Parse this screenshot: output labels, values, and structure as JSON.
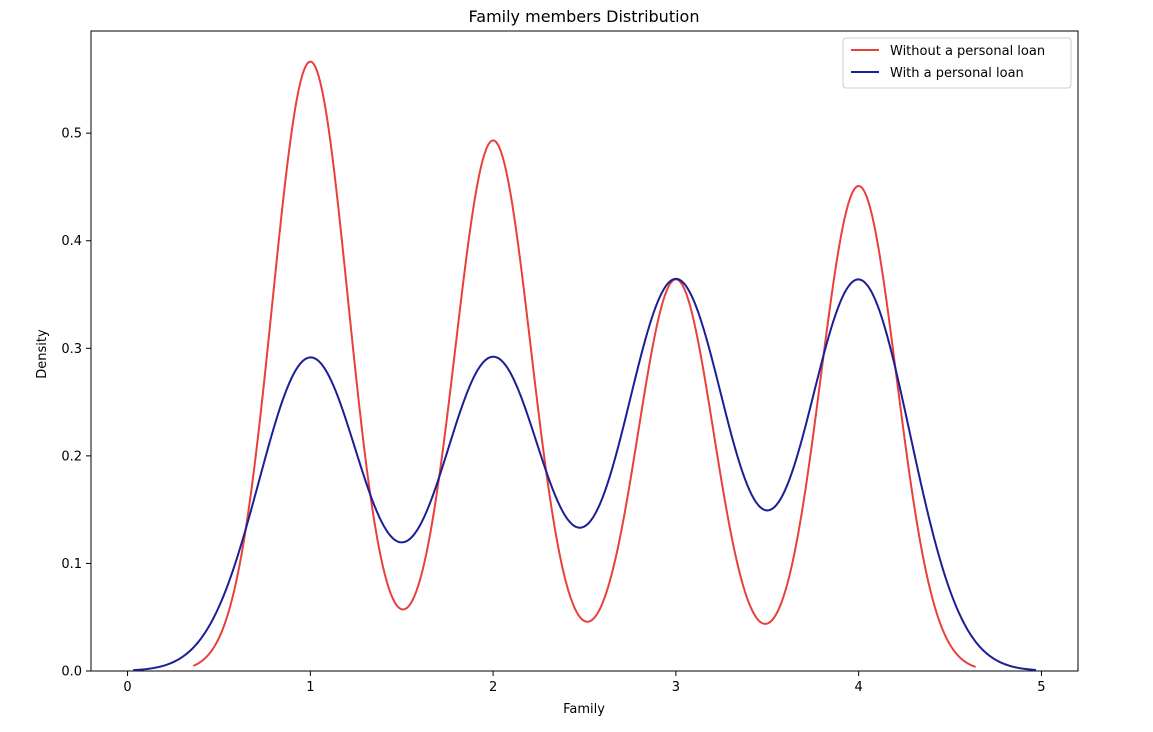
{
  "chart_data": {
    "type": "line",
    "title": "Family members Distribution",
    "xlabel": "Family",
    "ylabel": "Density",
    "xlim": [
      -0.2,
      5.2
    ],
    "ylim": [
      0,
      0.595
    ],
    "xticks": [
      0,
      1,
      2,
      3,
      4,
      5
    ],
    "yticks": [
      0.0,
      0.1,
      0.2,
      0.3,
      0.4,
      0.5
    ],
    "xtick_labels": [
      "0",
      "1",
      "2",
      "3",
      "4",
      "5"
    ],
    "ytick_labels": [
      "0.0",
      "0.1",
      "0.2",
      "0.3",
      "0.4",
      "0.5"
    ],
    "grid": false,
    "legend_position": "top-right",
    "series": [
      {
        "name": "Without a personal loan",
        "color": "#e8403b",
        "x_range": [
          0.36,
          4.64
        ],
        "kde": {
          "centers": [
            1,
            2,
            3,
            4
          ],
          "weights": [
            0.294,
            0.256,
            0.189,
            0.234
          ],
          "bandwidth": 0.207
        }
      },
      {
        "name": "With a personal loan",
        "color": "#1c1e96",
        "x_range": [
          0.03,
          4.97
        ],
        "kde": {
          "centers": [
            1,
            2,
            3,
            4
          ],
          "weights": [
            0.205,
            0.205,
            0.256,
            0.256
          ],
          "bandwidth": 0.281
        }
      }
    ]
  }
}
